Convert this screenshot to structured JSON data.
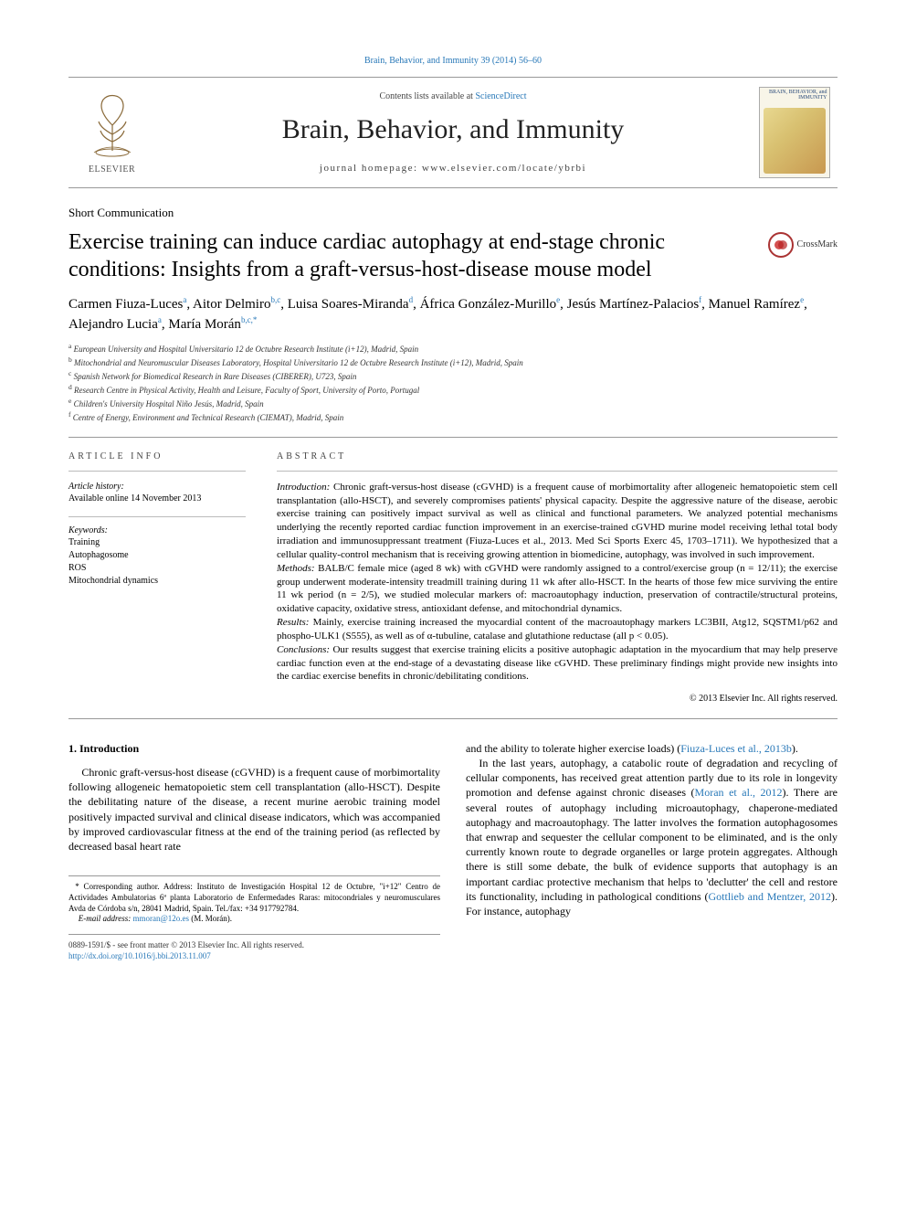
{
  "colors": {
    "link": "#2878b8",
    "text": "#000000",
    "rule": "#999999",
    "bg": "#ffffff"
  },
  "typography": {
    "body_family": "Times New Roman",
    "base_size_pt": 9,
    "title_size_pt": 18,
    "journal_size_pt": 22
  },
  "header": {
    "citation": "Brain, Behavior, and Immunity 39 (2014) 56–60",
    "publisher_name": "ELSEVIER",
    "contents_prefix": "Contents lists available at ",
    "contents_link": "ScienceDirect",
    "journal_name": "Brain, Behavior, and Immunity",
    "homepage_label": "journal homepage: ",
    "homepage_url": "www.elsevier.com/locate/ybrbi",
    "cover_label": "BRAIN,\nBEHAVIOR,\nand IMMUNITY"
  },
  "article": {
    "section_tag": "Short Communication",
    "title": "Exercise training can induce cardiac autophagy at end-stage chronic conditions: Insights from a graft-versus-host-disease mouse model",
    "crossmark_label": "CrossMark"
  },
  "authors_html": "Carmen Fiuza-Luces<sup>a</sup>, Aitor Delmiro<sup>b,c</sup>, Luisa Soares-Miranda<sup>d</sup>, África González-Murillo<sup>e</sup>, Jesús Martínez-Palacios<sup>f</sup>, Manuel Ramírez<sup>e</sup>, Alejandro Lucia<sup>a</sup>, María Morán<sup>b,c,*</sup>",
  "affiliations": [
    {
      "key": "a",
      "text": "European University and Hospital Universitario 12 de Octubre Research Institute (i+12), Madrid, Spain"
    },
    {
      "key": "b",
      "text": "Mitochondrial and Neuromuscular Diseases Laboratory, Hospital Universitario 12 de Octubre Research Institute (i+12), Madrid, Spain"
    },
    {
      "key": "c",
      "text": "Spanish Network for Biomedical Research in Rare Diseases (CIBERER), U723, Spain"
    },
    {
      "key": "d",
      "text": "Research Centre in Physical Activity, Health and Leisure, Faculty of Sport, University of Porto, Portugal"
    },
    {
      "key": "e",
      "text": "Children's University Hospital Niño Jesús, Madrid, Spain"
    },
    {
      "key": "f",
      "text": "Centre of Energy, Environment and Technical Research (CIEMAT), Madrid, Spain"
    }
  ],
  "info": {
    "head": "ARTICLE INFO",
    "history_head": "Article history:",
    "history_line": "Available online 14 November 2013",
    "keywords_head": "Keywords:",
    "keywords": [
      "Training",
      "Autophagosome",
      "ROS",
      "Mitochondrial dynamics"
    ]
  },
  "abstract": {
    "head": "ABSTRACT",
    "intro_label": "Introduction:",
    "intro": " Chronic graft-versus-host disease (cGVHD) is a frequent cause of morbimortality after allogeneic hematopoietic stem cell transplantation (allo-HSCT), and severely compromises patients' physical capacity. Despite the aggressive nature of the disease, aerobic exercise training can positively impact survival as well as clinical and functional parameters. We analyzed potential mechanisms underlying the recently reported cardiac function improvement in an exercise-trained cGVHD murine model receiving lethal total body irradiation and immunosuppressant treatment (Fiuza-Luces et al., 2013. Med Sci Sports Exerc 45, 1703–1711). We hypothesized that a cellular quality-control mechanism that is receiving growing attention in biomedicine, autophagy, was involved in such improvement.",
    "methods_label": "Methods:",
    "methods": " BALB/C female mice (aged 8 wk) with cGVHD were randomly assigned to a control/exercise group (n = 12/11); the exercise group underwent moderate-intensity treadmill training during 11 wk after allo-HSCT. In the hearts of those few mice surviving the entire 11 wk period (n = 2/5), we studied molecular markers of: macroautophagy induction, preservation of contractile/structural proteins, oxidative capacity, oxidative stress, antioxidant defense, and mitochondrial dynamics.",
    "results_label": "Results:",
    "results": " Mainly, exercise training increased the myocardial content of the macroautophagy markers LC3BII, Atg12, SQSTM1/p62 and phospho-ULK1 (S555), as well as of α-tubuline, catalase and glutathione reductase (all p < 0.05).",
    "concl_label": "Conclusions:",
    "concl": " Our results suggest that exercise training elicits a positive autophagic adaptation in the myocardium that may help preserve cardiac function even at the end-stage of a devastating disease like cGVHD. These preliminary findings might provide new insights into the cardiac exercise benefits in chronic/debilitating conditions.",
    "copyright": "© 2013 Elsevier Inc. All rights reserved."
  },
  "body": {
    "h1": "1. Introduction",
    "p1a": "Chronic graft-versus-host disease (cGVHD) is a frequent cause of morbimortality following allogeneic hematopoietic stem cell transplantation (allo-HSCT). Despite the debilitating nature of the disease, a recent murine aerobic training model positively impacted survival and clinical disease indicators, which was accompanied by improved cardiovascular fitness at the end of the training period (as reflected by decreased basal heart rate",
    "p1b_pre": "and the ability to tolerate higher exercise loads) (",
    "p1b_link": "Fiuza-Luces et al., 2013b",
    "p1b_post": ").",
    "p2_pre": "In the last years, autophagy, a catabolic route of degradation and recycling of cellular components, has received great attention partly due to its role in longevity promotion and defense against chronic diseases (",
    "p2_link1": "Moran et al., 2012",
    "p2_mid": "). There are several routes of autophagy including microautophagy, chaperone-mediated autophagy and macroautophagy. The latter involves the formation autophagosomes that enwrap and sequester the cellular component to be eliminated, and is the only currently known route to degrade organelles or large protein aggregates. Although there is still some debate, the bulk of evidence supports that autophagy is an important cardiac protective mechanism that helps to 'declutter' the cell and restore its functionality, including in pathological conditions (",
    "p2_link2": "Gottlieb and Mentzer, 2012",
    "p2_post": "). For instance, autophagy"
  },
  "footnote": {
    "corr": "* Corresponding author. Address: Instituto de Investigación Hospital 12 de Octubre, \"i+12\" Centro de Actividades Ambulatorias 6ª planta Laboratorio de Enfermedades Raras: mitocondriales y neuromusculares Avda de Córdoba s/n, 28041 Madrid, Spain. Tel./fax: +34 917792784.",
    "email_label": "E-mail address: ",
    "email": "mmoran@12o.es",
    "email_suffix": " (M. Morán)."
  },
  "bottom": {
    "issn": "0889-1591/$ - see front matter © 2013 Elsevier Inc. All rights reserved.",
    "doi": "http://dx.doi.org/10.1016/j.bbi.2013.11.007"
  }
}
